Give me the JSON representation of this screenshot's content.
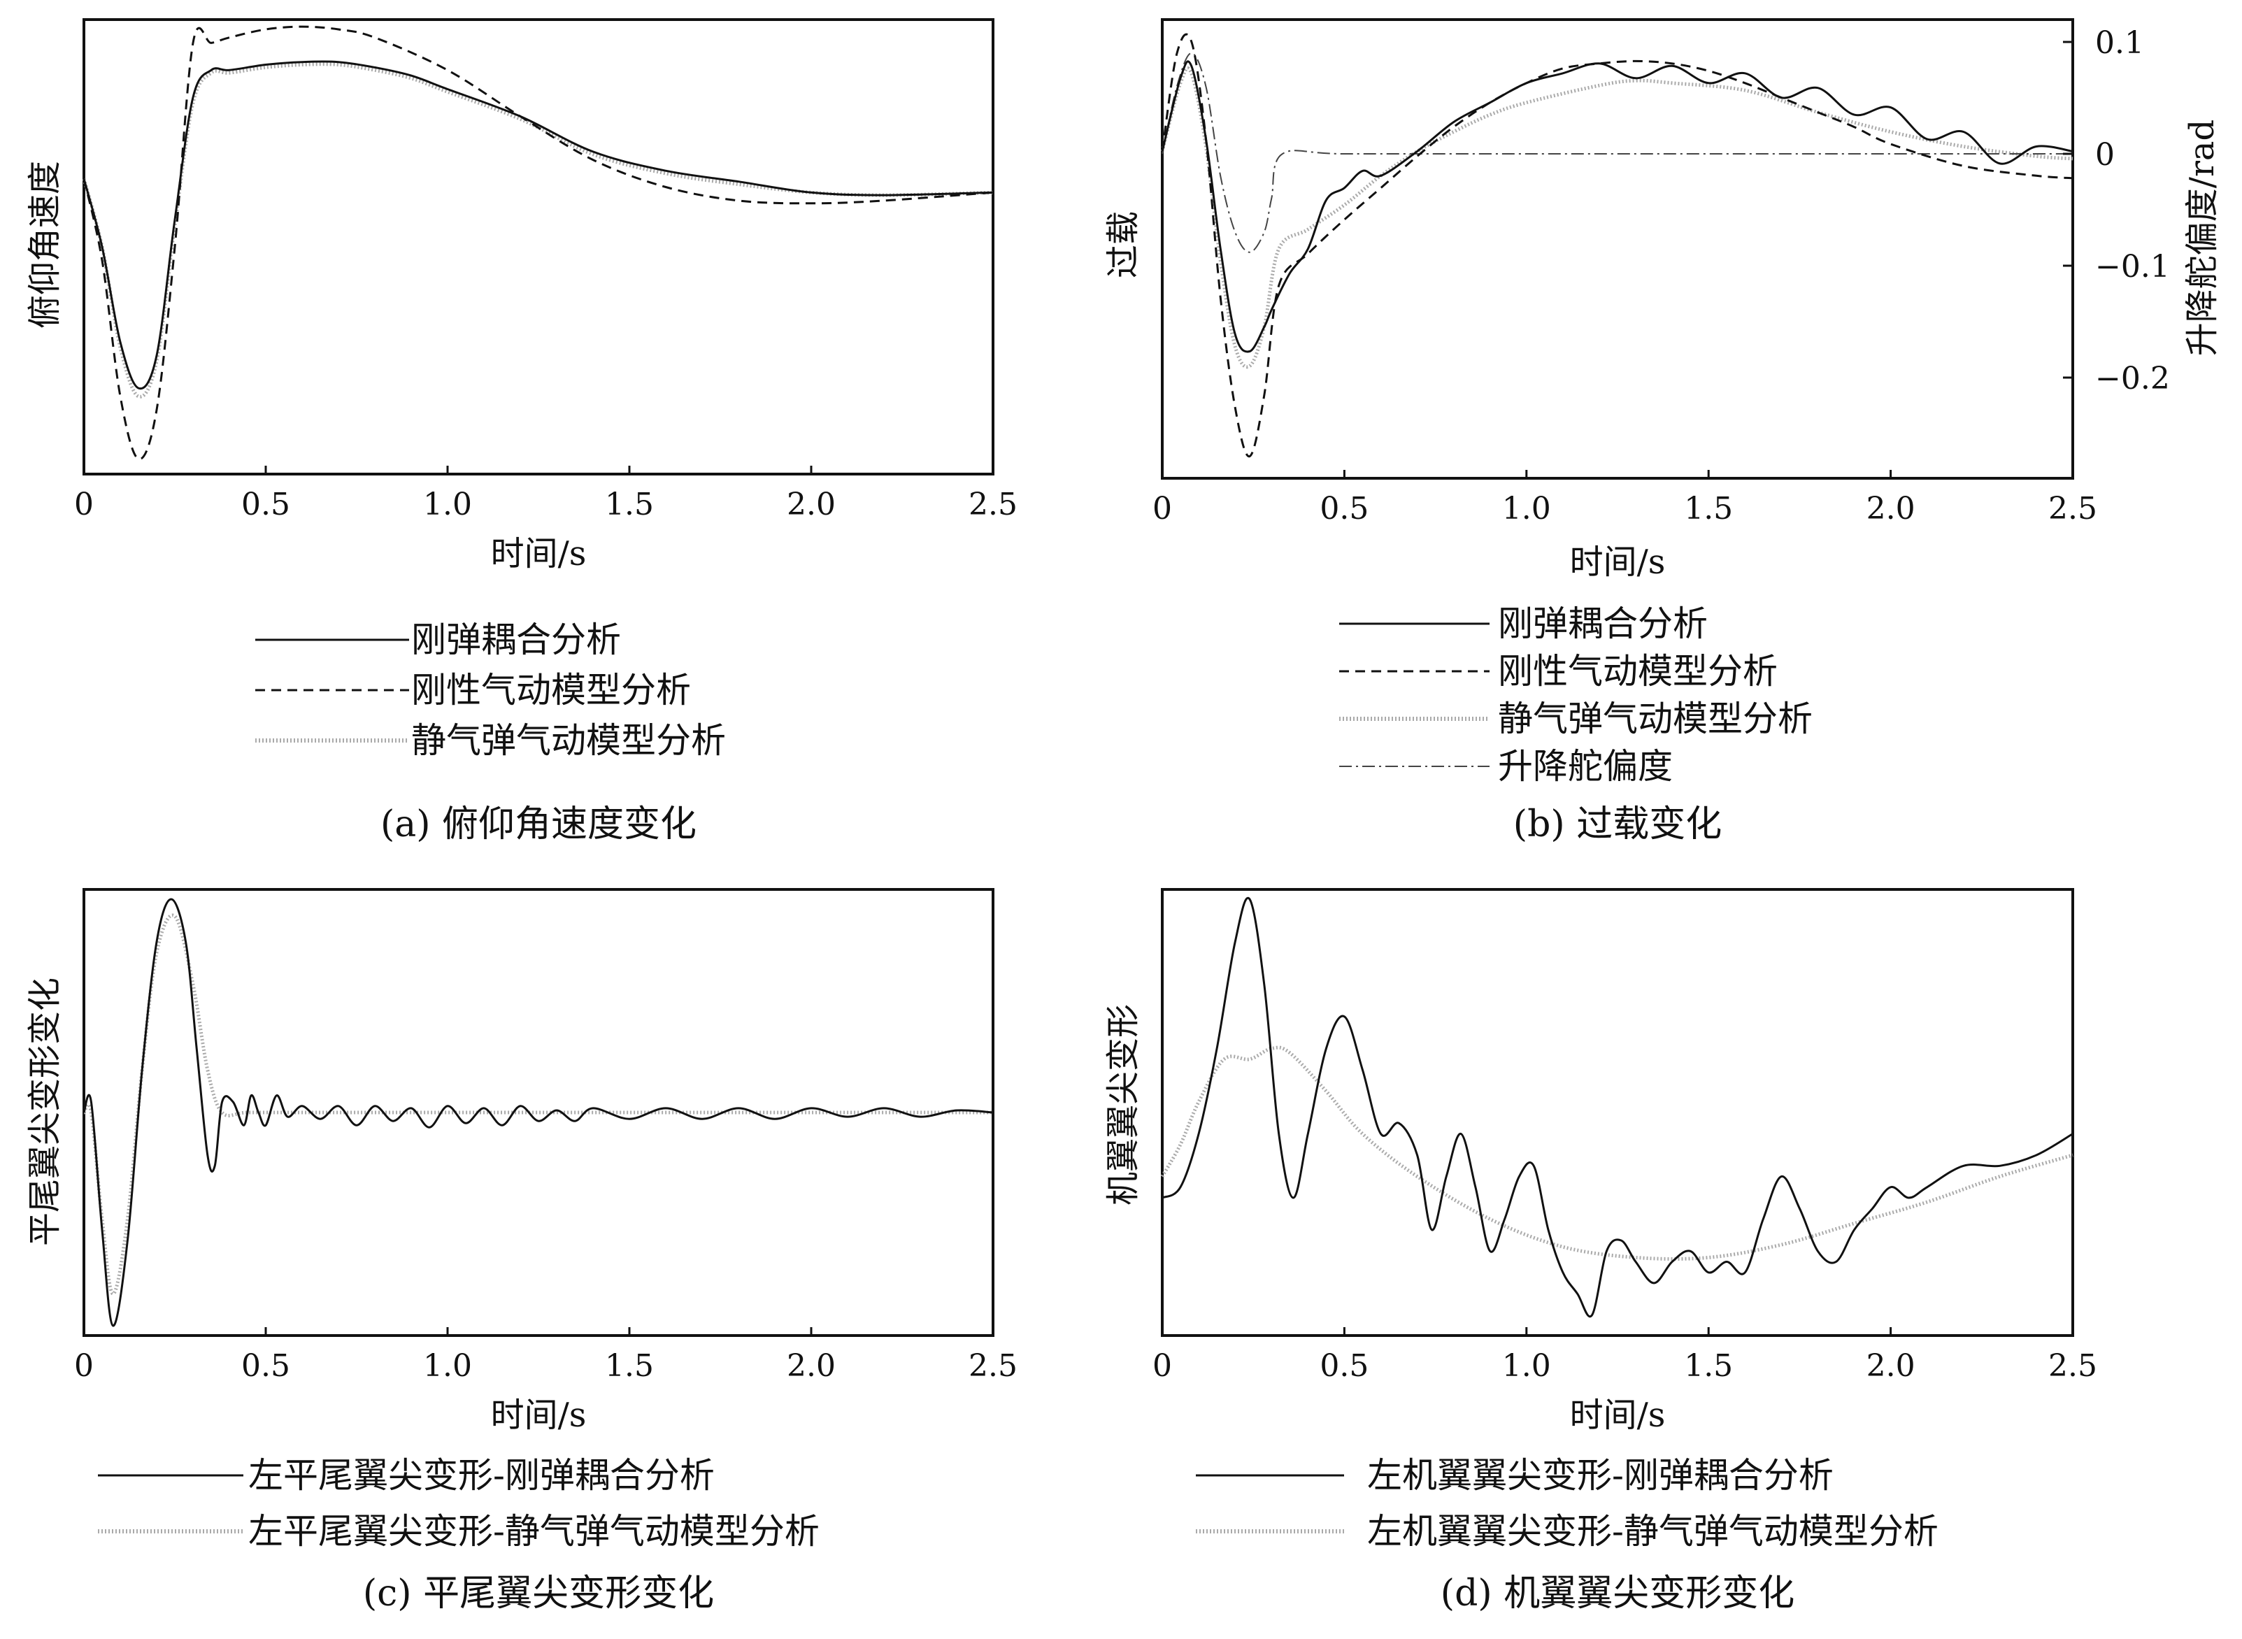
{
  "charts": {
    "a": {
      "ylabel": "俯仰角速度",
      "xlabel": "时间/s",
      "xticks": [
        "0",
        "0.5",
        "1.0",
        "1.5",
        "2.0",
        "2.5"
      ],
      "legend": [
        "刚弹耦合分析",
        "刚性气动模型分析",
        "静气弹气动模型分析"
      ],
      "caption": "(a) 俯仰角速度变化"
    },
    "b": {
      "ylabel": "过载",
      "y2label": "升降舵偏度/rad",
      "xlabel": "时间/s",
      "xticks": [
        "0",
        "0.5",
        "1.0",
        "1.5",
        "2.0",
        "2.5"
      ],
      "y2ticks": [
        "0.1",
        "0",
        "−0.1",
        "−0.2"
      ],
      "legend": [
        "刚弹耦合分析",
        "刚性气动模型分析",
        "静气弹气动模型分析",
        "升降舵偏度"
      ],
      "caption": "(b) 过载变化"
    },
    "c": {
      "ylabel": "平尾翼尖变形变化",
      "xlabel": "时间/s",
      "xticks": [
        "0",
        "0.5",
        "1.0",
        "1.5",
        "2.0",
        "2.5"
      ],
      "legend": [
        "左平尾翼尖变形-刚弹耦合分析",
        "左平尾翼尖变形-静气弹气动模型分析"
      ],
      "caption": "(c) 平尾翼尖变形变化"
    },
    "d": {
      "ylabel": "机翼翼尖变形",
      "xlabel": "时间/s",
      "xticks": [
        "0",
        "0.5",
        "1.0",
        "1.5",
        "2.0",
        "2.5"
      ],
      "legend": [
        "左机翼翼尖变形-刚弹耦合分析",
        "左机翼翼尖变形-静气弹气动模型分析"
      ],
      "caption": "(d) 机翼翼尖变形变化"
    }
  },
  "chart_data": [
    {
      "type": "line",
      "xlim": [
        0,
        2.5
      ],
      "ylim": [
        -1.0,
        0.6
      ],
      "series": [
        {
          "name": "刚弹耦合分析",
          "style": "solid",
          "x": [
            0,
            0.05,
            0.1,
            0.15,
            0.2,
            0.25,
            0.3,
            0.35,
            0.4,
            0.5,
            0.6,
            0.7,
            0.8,
            0.9,
            1.0,
            1.2,
            1.4,
            1.6,
            1.8,
            2.0,
            2.2,
            2.5
          ],
          "y": [
            0.05,
            -0.2,
            -0.55,
            -0.72,
            -0.6,
            -0.1,
            0.35,
            0.45,
            0.45,
            0.47,
            0.48,
            0.48,
            0.46,
            0.43,
            0.38,
            0.28,
            0.15,
            0.08,
            0.04,
            0.0,
            -0.01,
            0.0
          ]
        },
        {
          "name": "刚性气动模型分析",
          "style": "dashed",
          "x": [
            0,
            0.05,
            0.1,
            0.15,
            0.2,
            0.25,
            0.3,
            0.35,
            0.4,
            0.5,
            0.6,
            0.7,
            0.8,
            1.0,
            1.2,
            1.4,
            1.6,
            1.8,
            2.0,
            2.2,
            2.5
          ],
          "y": [
            0.05,
            -0.25,
            -0.75,
            -0.98,
            -0.8,
            -0.2,
            0.55,
            0.55,
            0.57,
            0.6,
            0.61,
            0.6,
            0.57,
            0.45,
            0.28,
            0.12,
            0.02,
            -0.03,
            -0.04,
            -0.03,
            0.0
          ]
        },
        {
          "name": "静气弹气动模型分析",
          "style": "dotted",
          "x": [
            0,
            0.05,
            0.1,
            0.15,
            0.2,
            0.25,
            0.3,
            0.35,
            0.4,
            0.5,
            0.6,
            0.7,
            0.8,
            0.9,
            1.0,
            1.2,
            1.4,
            1.6,
            1.8,
            2.0,
            2.2,
            2.5
          ],
          "y": [
            0.05,
            -0.2,
            -0.57,
            -0.75,
            -0.62,
            -0.12,
            0.33,
            0.44,
            0.44,
            0.46,
            0.47,
            0.47,
            0.45,
            0.42,
            0.37,
            0.27,
            0.14,
            0.07,
            0.03,
            0.0,
            -0.01,
            0.0
          ]
        }
      ]
    },
    {
      "type": "line",
      "xlim": [
        0,
        2.5
      ],
      "ylim": [
        -1.3,
        0.5
      ],
      "y2lim": [
        -0.29,
        0.12
      ],
      "y2ticks": [
        0.1,
        0,
        -0.1,
        -0.2
      ],
      "series": [
        {
          "name": "刚弹耦合分析",
          "style": "solid",
          "x": [
            0,
            0.05,
            0.08,
            0.12,
            0.16,
            0.2,
            0.24,
            0.28,
            0.3,
            0.35,
            0.4,
            0.45,
            0.5,
            0.55,
            0.6,
            0.7,
            0.8,
            0.9,
            1.0,
            1.1,
            1.2,
            1.3,
            1.4,
            1.5,
            1.6,
            1.7,
            1.8,
            1.9,
            2.0,
            2.1,
            2.2,
            2.3,
            2.4,
            2.5
          ],
          "y": [
            0.0,
            0.3,
            0.35,
            0.05,
            -0.4,
            -0.75,
            -0.82,
            -0.72,
            -0.65,
            -0.5,
            -0.4,
            -0.2,
            -0.15,
            -0.08,
            -0.1,
            0.0,
            0.12,
            0.2,
            0.28,
            0.32,
            0.36,
            0.3,
            0.35,
            0.28,
            0.32,
            0.22,
            0.26,
            0.15,
            0.18,
            0.05,
            0.08,
            -0.05,
            0.02,
            0.0
          ]
        },
        {
          "name": "刚性气动模型分析",
          "style": "dashed",
          "x": [
            0,
            0.04,
            0.08,
            0.12,
            0.16,
            0.2,
            0.24,
            0.28,
            0.32,
            0.4,
            0.5,
            0.6,
            0.7,
            0.8,
            0.9,
            1.0,
            1.1,
            1.2,
            1.3,
            1.4,
            1.5,
            1.6,
            1.7,
            1.8,
            1.9,
            2.0,
            2.2,
            2.4,
            2.5
          ],
          "y": [
            0.0,
            0.4,
            0.45,
            0.05,
            -0.6,
            -1.05,
            -1.25,
            -1.0,
            -0.55,
            -0.42,
            -0.28,
            -0.15,
            -0.02,
            0.1,
            0.2,
            0.28,
            0.34,
            0.36,
            0.37,
            0.36,
            0.33,
            0.28,
            0.22,
            0.16,
            0.1,
            0.03,
            -0.06,
            -0.1,
            -0.11
          ]
        },
        {
          "name": "静气弹气动模型分析",
          "style": "dotted",
          "x": [
            0,
            0.05,
            0.08,
            0.12,
            0.16,
            0.2,
            0.24,
            0.28,
            0.32,
            0.4,
            0.5,
            0.6,
            0.7,
            0.8,
            0.9,
            1.0,
            1.2,
            1.3,
            1.4,
            1.6,
            1.8,
            2.0,
            2.2,
            2.4,
            2.5
          ],
          "y": [
            0.0,
            0.28,
            0.32,
            0.02,
            -0.45,
            -0.8,
            -0.88,
            -0.72,
            -0.4,
            -0.32,
            -0.22,
            -0.1,
            0.0,
            0.08,
            0.15,
            0.2,
            0.27,
            0.29,
            0.28,
            0.25,
            0.16,
            0.08,
            0.02,
            -0.02,
            -0.03
          ]
        },
        {
          "name": "升降舵偏度",
          "style": "dashdot",
          "axis": "y2",
          "x": [
            0,
            0.04,
            0.08,
            0.12,
            0.16,
            0.2,
            0.24,
            0.28,
            0.3,
            0.33,
            0.5,
            1.0,
            1.5,
            2.0,
            2.5
          ],
          "y": [
            0.0,
            0.06,
            0.09,
            0.06,
            -0.02,
            -0.07,
            -0.088,
            -0.07,
            -0.04,
            0.0,
            0.0,
            0.0,
            0.0,
            0.0,
            0.0
          ]
        }
      ]
    },
    {
      "type": "line",
      "xlim": [
        0,
        2.5
      ],
      "ylim": [
        -1.0,
        1.0
      ],
      "series": [
        {
          "name": "左平尾翼尖变形-刚弹耦合分析",
          "style": "solid",
          "x": [
            0,
            0.02,
            0.05,
            0.08,
            0.12,
            0.16,
            0.2,
            0.24,
            0.28,
            0.31,
            0.34,
            0.36,
            0.38,
            0.41,
            0.44,
            0.46,
            0.48,
            0.5,
            0.53,
            0.56,
            0.6,
            0.65,
            0.7,
            0.75,
            0.8,
            0.85,
            0.9,
            0.95,
            1.0,
            1.05,
            1.1,
            1.15,
            1.2,
            1.25,
            1.3,
            1.35,
            1.4,
            1.5,
            1.6,
            1.7,
            1.8,
            1.9,
            2.0,
            2.1,
            2.2,
            2.3,
            2.4,
            2.5
          ],
          "y": [
            0.0,
            0.05,
            -0.55,
            -1.0,
            -0.6,
            0.2,
            0.8,
            1.0,
            0.8,
            0.3,
            -0.2,
            -0.25,
            0.05,
            0.05,
            -0.06,
            0.08,
            0.0,
            -0.06,
            0.08,
            -0.02,
            0.03,
            -0.03,
            0.03,
            -0.06,
            0.03,
            -0.04,
            0.02,
            -0.07,
            0.03,
            -0.05,
            0.02,
            -0.06,
            0.03,
            -0.04,
            0.01,
            -0.04,
            0.02,
            -0.03,
            0.02,
            -0.03,
            0.02,
            -0.03,
            0.02,
            -0.02,
            0.02,
            -0.02,
            0.01,
            0.0
          ]
        },
        {
          "name": "左平尾翼尖变形-静气弹气动模型分析",
          "style": "dotted",
          "x": [
            0,
            0.02,
            0.05,
            0.08,
            0.12,
            0.16,
            0.2,
            0.25,
            0.3,
            0.34,
            0.38,
            0.45,
            0.6,
            1.0,
            1.5,
            2.0,
            2.5
          ],
          "y": [
            0.0,
            0.0,
            -0.5,
            -0.85,
            -0.5,
            0.2,
            0.75,
            0.92,
            0.6,
            0.2,
            0.0,
            0.0,
            0.0,
            0.0,
            0.0,
            0.0,
            0.0
          ]
        }
      ]
    },
    {
      "type": "line",
      "xlim": [
        0,
        2.5
      ],
      "ylim": [
        -1.0,
        1.0
      ],
      "series": [
        {
          "name": "左机翼翼尖变形-刚弹耦合分析",
          "style": "solid",
          "x": [
            0,
            0.05,
            0.1,
            0.15,
            0.2,
            0.24,
            0.28,
            0.32,
            0.36,
            0.4,
            0.45,
            0.5,
            0.55,
            0.6,
            0.65,
            0.7,
            0.74,
            0.78,
            0.82,
            0.86,
            0.9,
            0.94,
            0.98,
            1.02,
            1.06,
            1.1,
            1.14,
            1.18,
            1.22,
            1.26,
            1.3,
            1.35,
            1.4,
            1.45,
            1.5,
            1.55,
            1.6,
            1.65,
            1.7,
            1.75,
            1.8,
            1.85,
            1.9,
            1.95,
            2.0,
            2.05,
            2.1,
            2.2,
            2.3,
            2.4,
            2.5
          ],
          "y": [
            -0.4,
            -0.35,
            -0.1,
            0.3,
            0.8,
            1.0,
            0.6,
            -0.1,
            -0.4,
            -0.1,
            0.3,
            0.45,
            0.2,
            -0.1,
            -0.05,
            -0.2,
            -0.55,
            -0.3,
            -0.1,
            -0.35,
            -0.65,
            -0.5,
            -0.3,
            -0.25,
            -0.55,
            -0.75,
            -0.85,
            -0.95,
            -0.65,
            -0.6,
            -0.7,
            -0.8,
            -0.7,
            -0.65,
            -0.75,
            -0.7,
            -0.75,
            -0.5,
            -0.3,
            -0.45,
            -0.65,
            -0.7,
            -0.55,
            -0.45,
            -0.35,
            -0.4,
            -0.35,
            -0.25,
            -0.25,
            -0.2,
            -0.1
          ]
        },
        {
          "name": "左机翼翼尖变形-静气弹气动模型分析",
          "style": "dotted",
          "x": [
            0,
            0.05,
            0.1,
            0.17,
            0.24,
            0.3,
            0.35,
            0.45,
            0.55,
            0.7,
            0.9,
            1.1,
            1.3,
            1.5,
            1.7,
            1.9,
            2.1,
            2.3,
            2.5
          ],
          "y": [
            -0.3,
            -0.15,
            0.05,
            0.25,
            0.25,
            0.3,
            0.28,
            0.1,
            -0.1,
            -0.3,
            -0.5,
            -0.63,
            -0.68,
            -0.68,
            -0.62,
            -0.52,
            -0.42,
            -0.3,
            -0.2
          ]
        }
      ]
    }
  ]
}
